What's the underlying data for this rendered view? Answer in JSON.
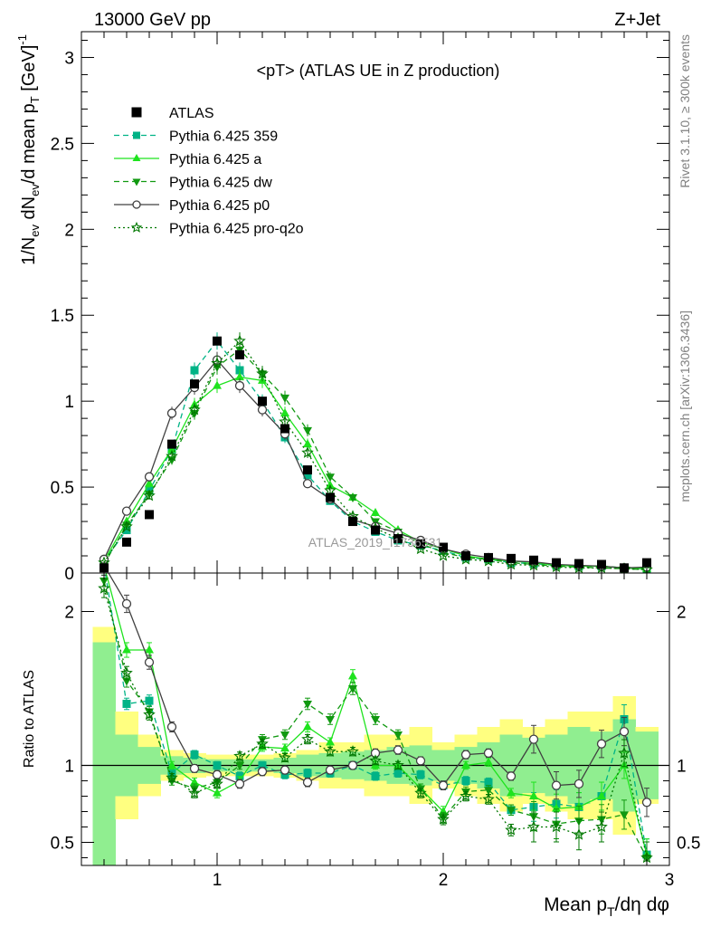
{
  "header": {
    "left": "13000 GeV pp",
    "right": "Z+Jet"
  },
  "chart_data": {
    "type": "line",
    "title": "<pT> (ATLAS UE in Z production)",
    "watermark": "ATLAS_2019_I1736531",
    "side_label_top": "Rivet 3.1.10, ≥ 300k events",
    "side_label_bottom": "mcplots.cern.ch [arXiv:1306.3436]",
    "main": {
      "ylabel": "1/N_ev dN_ev/d mean p_T [GeV]^-1",
      "ylim": [
        0,
        3.15
      ],
      "yticks": [
        0,
        0.5,
        1,
        1.5,
        2,
        2.5,
        3
      ],
      "ytick_labels": [
        "0",
        "0.5",
        "1",
        "1.5",
        "2",
        "2.5",
        "3"
      ]
    },
    "ratio": {
      "ylabel": "Ratio to ATLAS",
      "ylim": [
        0.35,
        2.25
      ],
      "yticks": [
        0.5,
        1,
        2
      ],
      "ytick_labels": [
        "0.5",
        "1",
        "2"
      ]
    },
    "x": {
      "xlabel": "Mean p_T/dη dφ",
      "xlim": [
        0.4,
        3.0
      ],
      "ticks": [
        1,
        2,
        3
      ],
      "tick_labels": [
        "1",
        "2",
        "3"
      ]
    },
    "x_values": [
      0.5,
      0.6,
      0.7,
      0.8,
      0.9,
      1.0,
      1.1,
      1.2,
      1.3,
      1.4,
      1.5,
      1.6,
      1.7,
      1.8,
      1.9,
      2.0,
      2.1,
      2.2,
      2.3,
      2.4,
      2.5,
      2.6,
      2.7,
      2.8,
      2.9
    ],
    "data": {
      "name": "ATLAS",
      "color": "#000000",
      "values": [
        0.03,
        0.18,
        0.34,
        0.75,
        1.1,
        1.35,
        1.27,
        1.0,
        0.84,
        0.6,
        0.44,
        0.3,
        0.25,
        0.2,
        0.17,
        0.15,
        0.1,
        0.09,
        0.085,
        0.075,
        0.06,
        0.055,
        0.05,
        0.03,
        0.06
      ],
      "band_outer_half": [
        0.9,
        0.35,
        0.2,
        0.1,
        0.08,
        0.07,
        0.07,
        0.07,
        0.08,
        0.1,
        0.15,
        0.15,
        0.2,
        0.2,
        0.25,
        0.15,
        0.2,
        0.25,
        0.3,
        0.25,
        0.3,
        0.35,
        0.35,
        0.45,
        0.25
      ],
      "band_inner_half": [
        0.8,
        0.2,
        0.12,
        0.06,
        0.05,
        0.04,
        0.04,
        0.04,
        0.05,
        0.07,
        0.08,
        0.09,
        0.1,
        0.12,
        0.13,
        0.1,
        0.12,
        0.15,
        0.2,
        0.18,
        0.2,
        0.25,
        0.22,
        0.3,
        0.22
      ]
    },
    "series": [
      {
        "name": "Pythia 6.425 359",
        "color": "#00b386",
        "dash": "6,4",
        "marker": "square",
        "values": [
          0.07,
          0.25,
          0.48,
          0.72,
          1.18,
          1.35,
          1.18,
          1.0,
          0.79,
          0.57,
          0.42,
          0.3,
          0.24,
          0.19,
          0.16,
          0.13,
          0.09,
          0.08,
          0.06,
          0.055,
          0.045,
          0.04,
          0.04,
          0.03,
          0.025
        ],
        "ratio": [
          2.3,
          1.4,
          1.42,
          0.95,
          1.07,
          1.0,
          0.93,
          1.0,
          0.94,
          0.95,
          0.95,
          1.0,
          0.93,
          0.95,
          0.94,
          0.87,
          0.9,
          0.89,
          0.71,
          0.73,
          0.75,
          0.73,
          0.8,
          1.3,
          0.42
        ]
      },
      {
        "name": "Pythia 6.425 a",
        "color": "#1ee31e",
        "dash": "",
        "marker": "triangle-up",
        "values": [
          0.07,
          0.3,
          0.52,
          0.72,
          0.98,
          1.09,
          1.14,
          1.12,
          0.93,
          0.75,
          0.51,
          0.44,
          0.35,
          0.25,
          0.18,
          0.14,
          0.1,
          0.08,
          0.07,
          0.06,
          0.045,
          0.04,
          0.04,
          0.03,
          0.025
        ],
        "ratio": [
          2.3,
          1.75,
          1.75,
          1.0,
          0.89,
          0.82,
          0.9,
          1.12,
          1.11,
          1.25,
          1.15,
          1.58,
          1.0,
          1.0,
          0.85,
          0.7,
          1.0,
          1.02,
          0.82,
          0.8,
          0.72,
          0.73,
          0.8,
          1.0,
          0.42
        ]
      },
      {
        "name": "Pythia 6.425 dw",
        "color": "#119911",
        "dash": "6,4",
        "marker": "triangle-down",
        "values": [
          0.05,
          0.28,
          0.46,
          0.66,
          0.93,
          1.2,
          1.3,
          1.16,
          1.02,
          0.83,
          0.56,
          0.44,
          0.3,
          0.24,
          0.17,
          0.12,
          0.09,
          0.08,
          0.06,
          0.05,
          0.04,
          0.035,
          0.03,
          0.025,
          0.02
        ],
        "ratio": [
          2.2,
          1.55,
          1.35,
          0.9,
          0.85,
          0.89,
          1.0,
          1.17,
          1.2,
          1.4,
          1.3,
          1.5,
          1.3,
          1.2,
          0.85,
          0.66,
          0.83,
          0.84,
          0.71,
          0.67,
          0.62,
          0.64,
          0.65,
          0.68,
          0.4
        ]
      },
      {
        "name": "Pythia 6.425 p0",
        "color": "#404040",
        "dash": "",
        "marker": "circle-open",
        "values": [
          0.08,
          0.36,
          0.56,
          0.93,
          1.08,
          1.24,
          1.09,
          0.95,
          0.81,
          0.52,
          0.43,
          0.31,
          0.27,
          0.23,
          0.19,
          0.14,
          0.11,
          0.09,
          0.07,
          0.065,
          0.05,
          0.045,
          0.04,
          0.03,
          0.035
        ],
        "ratio": [
          2.3,
          2.05,
          1.67,
          1.25,
          0.98,
          0.94,
          0.88,
          0.96,
          0.97,
          0.89,
          0.97,
          1.0,
          1.08,
          1.1,
          1.03,
          0.87,
          1.07,
          1.08,
          0.93,
          1.17,
          0.87,
          0.88,
          1.14,
          1.22,
          0.76
        ]
      },
      {
        "name": "Pythia 6.425 pro-q2o",
        "color": "#007700",
        "dash": "2,3",
        "marker": "star-open",
        "values": [
          0.06,
          0.27,
          0.45,
          0.68,
          0.95,
          1.22,
          1.35,
          1.16,
          0.88,
          0.7,
          0.48,
          0.33,
          0.26,
          0.2,
          0.14,
          0.1,
          0.08,
          0.07,
          0.05,
          0.045,
          0.035,
          0.03,
          0.03,
          0.025,
          0.02
        ],
        "ratio": [
          2.15,
          1.6,
          1.33,
          0.92,
          0.82,
          0.88,
          1.06,
          1.14,
          1.05,
          1.17,
          1.09,
          1.09,
          1.03,
          1.0,
          0.82,
          0.65,
          0.8,
          0.78,
          0.58,
          0.6,
          0.6,
          0.55,
          0.6,
          1.08,
          0.4
        ]
      }
    ]
  }
}
